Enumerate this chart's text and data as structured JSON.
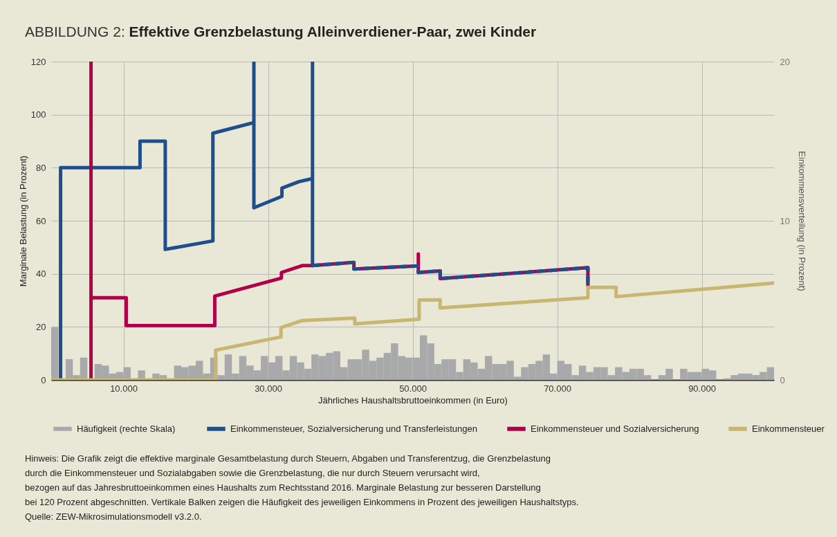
{
  "chart_data": {
    "type": "line",
    "title": "ABBILDUNG 2: Effektive Grenzbelastung Alleinverdiener-Paar, zwei Kinder",
    "xlabel": "Jährliches Haushaltsbruttoeinkommen (in Euro)",
    "ylabel": "Marginale Belastung (in Prozent)",
    "y2label": "Einkommensverteilung (in Prozent)",
    "xlim": [
      0,
      100000
    ],
    "xticks": [
      {
        "value": 10000,
        "label": "10.000"
      },
      {
        "value": 30000,
        "label": "30.000"
      },
      {
        "value": 50000,
        "label": "50.000"
      },
      {
        "value": 70000,
        "label": "70.000"
      },
      {
        "value": 90000,
        "label": "90.000"
      }
    ],
    "ylim": [
      0,
      120
    ],
    "yticks": [
      0,
      20,
      40,
      60,
      80,
      100,
      120
    ],
    "y2lim": [
      0,
      20
    ],
    "y2ticks": [
      0,
      10,
      20
    ],
    "grid": true,
    "legend": "bottom",
    "line_style": "solid",
    "series": [
      {
        "type": "histogram",
        "axis": "y2",
        "name": "Häufigkeit  (rechte Skala)",
        "color": "#a8a9ab",
        "bins": [
          0,
          1000,
          2000,
          3000,
          4000,
          5000,
          6000,
          7000,
          8000,
          9000,
          10000,
          11000,
          12000,
          13000,
          14000,
          15000,
          16000,
          17000,
          18000,
          19000,
          20000,
          21000,
          22000,
          23000,
          24000,
          25000,
          26000,
          27000,
          28000,
          29000,
          30000,
          31000,
          32000,
          33000,
          34000,
          35000,
          36000,
          37000,
          38000,
          39000,
          40000,
          41000,
          42000,
          43000,
          44000,
          45000,
          46000,
          47000,
          48000,
          49000,
          50000,
          51000,
          52000,
          53000,
          54000,
          55000,
          56000,
          57000,
          58000,
          59000,
          60000,
          61000,
          62000,
          63000,
          64000,
          65000,
          66000,
          67000,
          68000,
          69000,
          70000,
          71000,
          72000,
          73000,
          74000,
          75000,
          76000,
          77000,
          78000,
          79000,
          80000,
          81000,
          82000,
          83000,
          84000,
          85000,
          86000,
          87000,
          88000,
          89000,
          90000,
          91000,
          92000,
          93000,
          94000,
          95000,
          96000,
          97000,
          98000,
          99000,
          100000
        ],
        "values": [
          3.3,
          0,
          1.3,
          0.3,
          1.4,
          0,
          1.0,
          0.9,
          0.4,
          0.5,
          0.8,
          0,
          0.6,
          0,
          0.4,
          0.3,
          0,
          0.9,
          0.8,
          0.9,
          1.2,
          0.4,
          1.4,
          0.3,
          1.6,
          0.4,
          1.5,
          0.9,
          0.6,
          1.5,
          1.1,
          1.5,
          0.6,
          1.5,
          1.1,
          0.7,
          1.6,
          1.5,
          1.7,
          1.8,
          0.8,
          1.3,
          1.3,
          1.9,
          1.2,
          1.4,
          1.7,
          2.3,
          1.5,
          1.4,
          1.4,
          2.8,
          2.3,
          1.0,
          1.3,
          1.3,
          0.5,
          1.3,
          1.1,
          0.7,
          1.5,
          1.0,
          1.0,
          1.2,
          0.2,
          0.8,
          1.0,
          1.2,
          1.6,
          0.4,
          1.2,
          1.0,
          0.3,
          0.9,
          0.5,
          0.8,
          0.8,
          0.3,
          0.8,
          0.5,
          0.7,
          0.7,
          0.3,
          0,
          0.3,
          0.7,
          0,
          0.7,
          0.5,
          0.5,
          0.7,
          0.6,
          0,
          0.1,
          0.3,
          0.4,
          0.4,
          0.3,
          0.5,
          0.8
        ]
      },
      {
        "name": "Einkommensteuer, Sozialversicherung und Transferleistungen",
        "color": "#1f4e8c",
        "x": [
          1300,
          1300,
          12290,
          12290,
          15780,
          15780,
          22370,
          22370,
          28040,
          28040,
          28040,
          31920,
          31920,
          34240,
          36150,
          36150,
          36150
        ],
        "values": [
          0,
          80,
          80,
          90,
          90,
          49.2,
          52.4,
          93,
          97,
          120,
          64.9,
          69.2,
          72.3,
          74.7,
          75.9,
          120,
          43.1
        ]
      },
      {
        "name": "Einkommensteuer und Sozialversicherung",
        "color": "#b0004a",
        "x": [
          5510,
          5510,
          5510,
          10380,
          10380,
          22630,
          22630,
          31850,
          31850,
          34720,
          36150,
          41880,
          41880,
          50790,
          50790,
          50790,
          53810,
          53810,
          74250,
          74250
        ],
        "values": [
          0,
          120,
          31,
          31,
          20.5,
          20.5,
          31.6,
          38.4,
          40.5,
          43.1,
          43.1,
          44.3,
          41.8,
          43.0,
          47.5,
          40.5,
          41.1,
          38.2,
          42.3,
          35.7
        ]
      },
      {
        "name": "Einkommensteuer",
        "color": "#c9b670",
        "x": [
          0,
          22760,
          22760,
          31790,
          31790,
          34750,
          42000,
          42000,
          50900,
          50900,
          53810,
          53810,
          74250,
          74250,
          78150,
          78150,
          100000
        ],
        "values": [
          0,
          0,
          11.2,
          16.2,
          19.7,
          22.4,
          23.3,
          21.1,
          22.9,
          30.1,
          30.2,
          27.1,
          31.0,
          34.9,
          34.9,
          31.4,
          36.5
        ]
      },
      {
        "color": "#1f4e8c",
        "line_style": "dashed",
        "x": [
          36150,
          41880,
          41880,
          50790,
          50790,
          53810,
          53810,
          74250,
          74250
        ],
        "values": [
          43.1,
          44.3,
          41.8,
          43.0,
          40.5,
          41.1,
          38.2,
          42.3,
          35.7
        ]
      }
    ],
    "annotations": [
      "Hinweis: Die Grafik zeigt die effektive marginale Gesamtbelastung durch Steuern, Abgaben und Transferentzug, die Grenzbelastung",
      "durch die Einkommensteuer und Sozialabgaben sowie die Grenzbelastung, die nur durch Steuern verursacht wird,",
      "bezogen auf das Jahresbruttoeinkommen eines Haushalts zum Rechtsstand 2016. Marginale Belastung zur besseren Darstellung",
      "bei 120 Prozent abgeschnitten. Vertikale Balken zeigen die Häufigkeit des jeweiligen Einkommens in Prozent des jeweiligen Haushaltstyps.",
      "Quelle: ZEW-Mikrosimulationsmodell v3.2.0."
    ]
  }
}
